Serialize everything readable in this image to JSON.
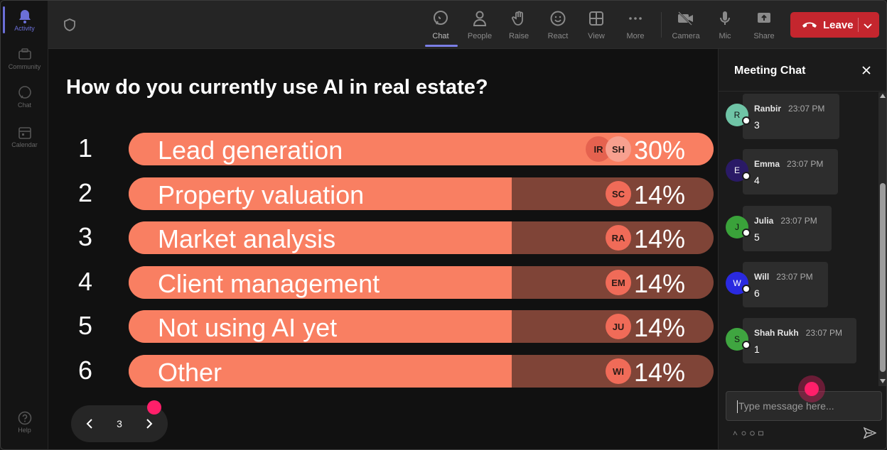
{
  "rail": {
    "items": [
      {
        "label": "Activity",
        "icon": "bell-icon"
      },
      {
        "label": "Community",
        "icon": "community-icon"
      },
      {
        "label": "Chat",
        "icon": "chat-bubble-icon"
      },
      {
        "label": "Calendar",
        "icon": "calendar-icon"
      }
    ],
    "help_label": "Help"
  },
  "toolbar": {
    "buttons": [
      {
        "label": "Chat",
        "icon": "chat-icon"
      },
      {
        "label": "People",
        "icon": "people-icon"
      },
      {
        "label": "Raise",
        "icon": "raise-hand-icon"
      },
      {
        "label": "React",
        "icon": "smiley-icon"
      },
      {
        "label": "View",
        "icon": "grid-view-icon"
      },
      {
        "label": "More",
        "icon": "more-dots-icon"
      },
      {
        "label": "Camera",
        "icon": "camera-off-icon"
      },
      {
        "label": "Mic",
        "icon": "mic-icon"
      },
      {
        "label": "Share",
        "icon": "share-icon"
      }
    ],
    "leave_label": "Leave",
    "leave_color": "#c4262e"
  },
  "poll": {
    "question": "How do you currently use AI in real estate?",
    "bar_color": "#f97f62",
    "track_color": "#7f4437",
    "options": [
      {
        "num": "1",
        "label": "Lead generation",
        "percent": 30,
        "percent_text": "30%",
        "voters": [
          "IR",
          "SH"
        ]
      },
      {
        "num": "2",
        "label": "Property valuation",
        "percent": 14,
        "percent_text": "14%",
        "voters": [
          "SC"
        ]
      },
      {
        "num": "3",
        "label": "Market analysis",
        "percent": 14,
        "percent_text": "14%",
        "voters": [
          "RA"
        ]
      },
      {
        "num": "4",
        "label": "Client management",
        "percent": 14,
        "percent_text": "14%",
        "voters": [
          "EM"
        ]
      },
      {
        "num": "5",
        "label": "Not using AI yet",
        "percent": 14,
        "percent_text": "14%",
        "voters": [
          "JU"
        ]
      },
      {
        "num": "6",
        "label": "Other",
        "percent": 14,
        "percent_text": "14%",
        "voters": [
          "WI"
        ]
      }
    ]
  },
  "pager": {
    "page": "3"
  },
  "chat": {
    "title": "Meeting Chat",
    "messages": [
      {
        "initial": "R",
        "name": "Ranbir",
        "time": "23:07 PM",
        "text": "3",
        "color": "#6fc4a6"
      },
      {
        "initial": "E",
        "name": "Emma",
        "time": "23:07 PM",
        "text": "4",
        "color": "#2a1a66"
      },
      {
        "initial": "J",
        "name": "Julia",
        "time": "23:07 PM",
        "text": "5",
        "color": "#3aa23a"
      },
      {
        "initial": "W",
        "name": "Will",
        "time": "23:07 PM",
        "text": "6",
        "color": "#2a2ae0"
      },
      {
        "initial": "S",
        "name": "Shah Rukh",
        "time": "23:07 PM",
        "text": "1",
        "color": "#3fa540"
      }
    ],
    "placeholder": "Type message here..."
  }
}
